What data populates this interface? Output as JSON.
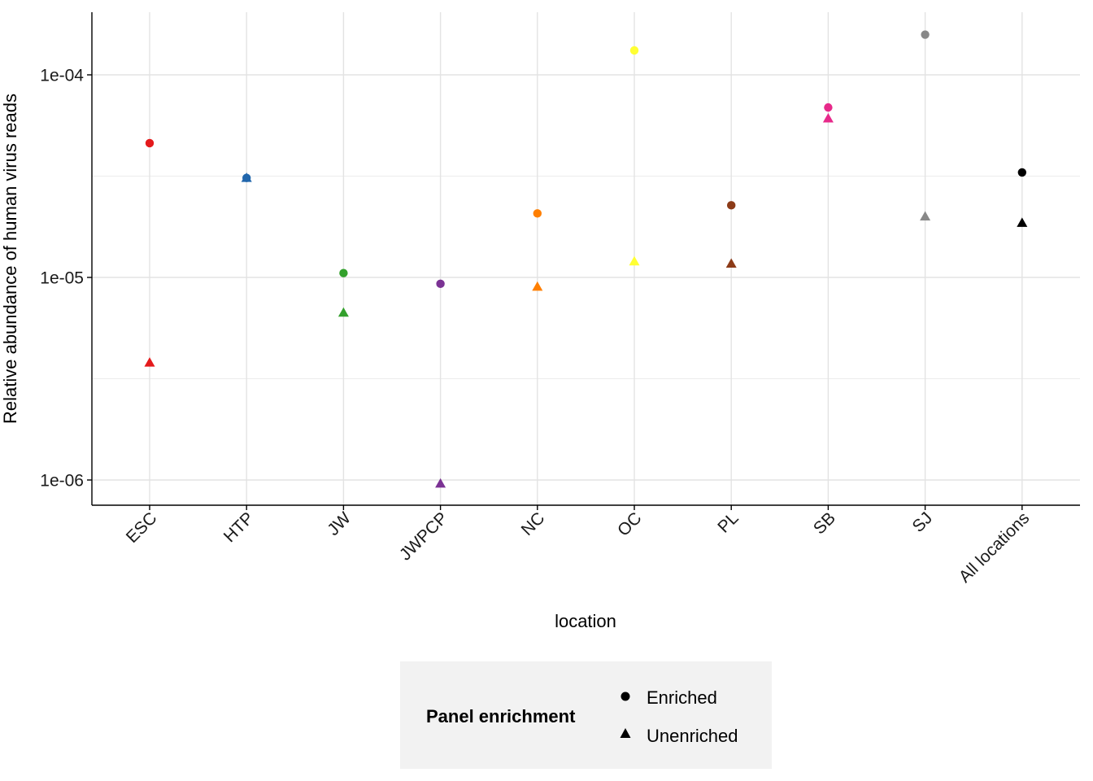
{
  "chart_data": {
    "type": "scatter",
    "xlabel": "location",
    "ylabel": "Relative abundance of human virus reads",
    "y_scale": "log10",
    "ylim": [
      7.5e-07,
      0.00019
    ],
    "y_ticks": [
      {
        "value": 1e-06,
        "label": "1e-06"
      },
      {
        "value": 1e-05,
        "label": "1e-05"
      },
      {
        "value": 0.0001,
        "label": "1e-04"
      }
    ],
    "grid": true,
    "legend_position": "bottom",
    "categories": [
      {
        "label": "ESC",
        "color": "#E41A1C"
      },
      {
        "label": "HTP",
        "color": "#2166AC"
      },
      {
        "label": "JW",
        "color": "#33A02C"
      },
      {
        "label": "JWPCP",
        "color": "#7B3294"
      },
      {
        "label": "NC",
        "color": "#FF7F00"
      },
      {
        "label": "OC",
        "color": "#FFFF33"
      },
      {
        "label": "PL",
        "color": "#8C3B18"
      },
      {
        "label": "SB",
        "color": "#E7298A"
      },
      {
        "label": "SJ",
        "color": "#888888"
      },
      {
        "label": "All locations",
        "color": "#000000"
      }
    ],
    "series": [
      {
        "name": "Enriched",
        "shape": "circle",
        "values": [
          4.6e-05,
          3.1e-05,
          1.05e-05,
          9.3e-06,
          2.07e-05,
          0.000132,
          2.27e-05,
          6.9e-05,
          0.000158,
          3.3e-05
        ]
      },
      {
        "name": "Unenriched",
        "shape": "triangle",
        "values": [
          3.8e-06,
          3.1e-05,
          6.7e-06,
          9.6e-07,
          9e-06,
          1.2e-05,
          1.17e-05,
          6.1e-05,
          2e-05,
          1.86e-05
        ]
      }
    ]
  },
  "legend": {
    "title": "Panel enrichment",
    "items": [
      "Enriched",
      "Unenriched"
    ]
  }
}
